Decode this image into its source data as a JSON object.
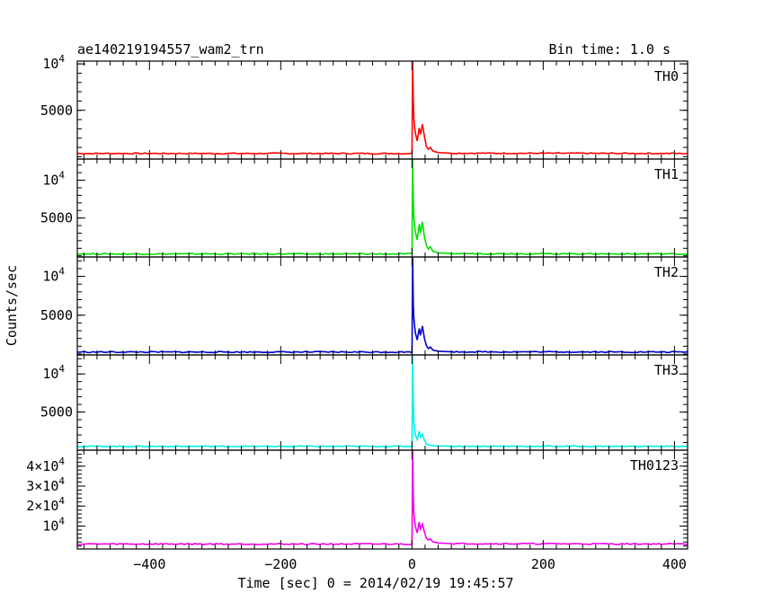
{
  "chart_data": {
    "type": "line",
    "title": "ae140219194557_wam2_trn",
    "subtitle": "Bin time: 1.0 s",
    "xlabel": "Time [sec] 0 = 2014/02/19 19:45:57",
    "ylabel": "Counts/sec",
    "xlim": [
      -510,
      420
    ],
    "x_ticks": [
      -400,
      -200,
      0,
      200,
      400
    ],
    "x_tick_labels": [
      "−400",
      "−200",
      "0",
      "200",
      "400"
    ],
    "grid": false,
    "panels": [
      {
        "name": "TH0",
        "color": "#ff0000",
        "ylim": [
          -250,
          10300
        ],
        "y_ticks": [
          5000,
          10000
        ],
        "y_tick_labels": [
          {
            "base": "5000",
            "exp": ""
          },
          {
            "base": "10",
            "exp": "4"
          }
        ],
        "baseline": 350,
        "points": [
          [
            -510,
            350
          ],
          [
            0,
            350
          ],
          [
            1,
            10300
          ],
          [
            2,
            6200
          ],
          [
            3,
            4000
          ],
          [
            5,
            2600
          ],
          [
            8,
            1700
          ],
          [
            11,
            3100
          ],
          [
            13,
            2400
          ],
          [
            16,
            3500
          ],
          [
            19,
            2200
          ],
          [
            22,
            1100
          ],
          [
            25,
            800
          ],
          [
            28,
            1000
          ],
          [
            32,
            600
          ],
          [
            40,
            450
          ],
          [
            60,
            380
          ],
          [
            420,
            350
          ]
        ]
      },
      {
        "name": "TH1",
        "color": "#00e000",
        "ylim": [
          -150,
          12800
        ],
        "y_ticks": [
          5000,
          10000
        ],
        "y_tick_labels": [
          {
            "base": "5000",
            "exp": ""
          },
          {
            "base": "10",
            "exp": "4"
          }
        ],
        "baseline": 250,
        "points": [
          [
            -510,
            250
          ],
          [
            0,
            250
          ],
          [
            1,
            12800
          ],
          [
            2,
            7500
          ],
          [
            3,
            5000
          ],
          [
            5,
            3200
          ],
          [
            8,
            2100
          ],
          [
            11,
            4200
          ],
          [
            13,
            3000
          ],
          [
            16,
            4500
          ],
          [
            19,
            2500
          ],
          [
            22,
            1400
          ],
          [
            25,
            900
          ],
          [
            28,
            1200
          ],
          [
            32,
            600
          ],
          [
            40,
            400
          ],
          [
            60,
            300
          ],
          [
            420,
            250
          ]
        ]
      },
      {
        "name": "TH2",
        "color": "#0000cc",
        "ylim": [
          -120,
          12500
        ],
        "y_ticks": [
          5000,
          10000
        ],
        "y_tick_labels": [
          {
            "base": "5000",
            "exp": ""
          },
          {
            "base": "10",
            "exp": "4"
          }
        ],
        "baseline": 250,
        "points": [
          [
            -510,
            250
          ],
          [
            0,
            250
          ],
          [
            1,
            12500
          ],
          [
            2,
            6500
          ],
          [
            3,
            4500
          ],
          [
            5,
            2800
          ],
          [
            8,
            1800
          ],
          [
            11,
            3300
          ],
          [
            13,
            2400
          ],
          [
            16,
            3600
          ],
          [
            19,
            2000
          ],
          [
            22,
            1100
          ],
          [
            25,
            700
          ],
          [
            28,
            900
          ],
          [
            32,
            500
          ],
          [
            40,
            350
          ],
          [
            60,
            280
          ],
          [
            420,
            250
          ]
        ]
      },
      {
        "name": "TH3",
        "color": "#00f0f0",
        "ylim": [
          0,
          12500
        ],
        "y_ticks": [
          5000,
          10000
        ],
        "y_tick_labels": [
          {
            "base": "5000",
            "exp": ""
          },
          {
            "base": "10",
            "exp": "4"
          }
        ],
        "baseline": 500,
        "points": [
          [
            -510,
            500
          ],
          [
            0,
            500
          ],
          [
            1,
            12500
          ],
          [
            2,
            6500
          ],
          [
            3,
            3500
          ],
          [
            5,
            2000
          ],
          [
            8,
            1400
          ],
          [
            11,
            2500
          ],
          [
            13,
            1700
          ],
          [
            16,
            2100
          ],
          [
            19,
            1300
          ],
          [
            22,
            800
          ],
          [
            25,
            700
          ],
          [
            28,
            650
          ],
          [
            32,
            600
          ],
          [
            40,
            550
          ],
          [
            60,
            520
          ],
          [
            420,
            500
          ]
        ]
      },
      {
        "name": "TH0123",
        "color": "#ee00ee",
        "ylim": [
          -1500,
          48000
        ],
        "y_ticks": [
          10000,
          20000,
          30000,
          40000
        ],
        "y_tick_labels": [
          {
            "base": "10",
            "exp": "4"
          },
          {
            "base": "2×10",
            "exp": "4"
          },
          {
            "base": "3×10",
            "exp": "4"
          },
          {
            "base": "4×10",
            "exp": "4"
          }
        ],
        "baseline": 1000,
        "points": [
          [
            -510,
            1000
          ],
          [
            0,
            1000
          ],
          [
            1,
            48000
          ],
          [
            2,
            25000
          ],
          [
            3,
            16000
          ],
          [
            5,
            10000
          ],
          [
            8,
            6500
          ],
          [
            11,
            12000
          ],
          [
            13,
            8500
          ],
          [
            16,
            11000
          ],
          [
            19,
            7000
          ],
          [
            22,
            4000
          ],
          [
            25,
            3000
          ],
          [
            28,
            3500
          ],
          [
            32,
            2000
          ],
          [
            40,
            1500
          ],
          [
            60,
            1200
          ],
          [
            420,
            1000
          ]
        ]
      }
    ]
  }
}
